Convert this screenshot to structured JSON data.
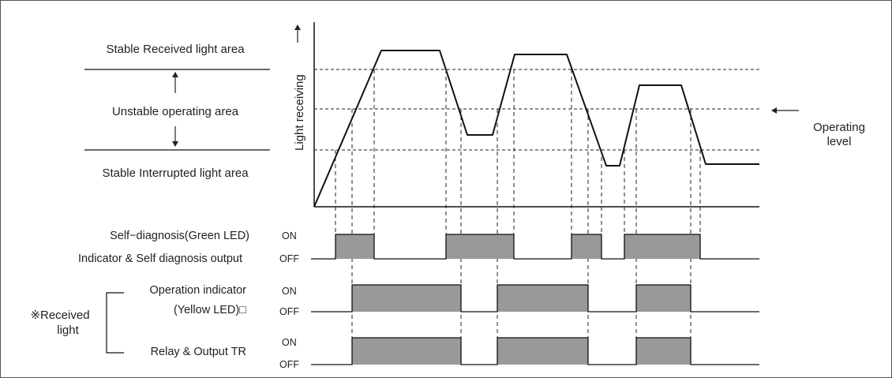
{
  "areas": {
    "stable_received": "Stable Received light area",
    "unstable": "Unstable operating area",
    "stable_interrupted": "Stable Interrupted light area"
  },
  "axis": {
    "y_label": "Light receiving"
  },
  "operating_level": {
    "line1": "Operating",
    "line2": "level"
  },
  "signals": {
    "self_diag_line1": "Self−diagnosis(Green LED)",
    "self_diag_line2": "Indicator & Self diagnosis output",
    "operation_line1": "Operation indicator",
    "operation_line2": "(Yellow LED)□",
    "relay": "Relay & Output TR",
    "received_line1": "※Received",
    "received_line2": "light",
    "on": "ON",
    "off": "OFF"
  },
  "colors": {
    "pulse_fill": "#999999",
    "line": "#111111",
    "dash": "#222222"
  }
}
